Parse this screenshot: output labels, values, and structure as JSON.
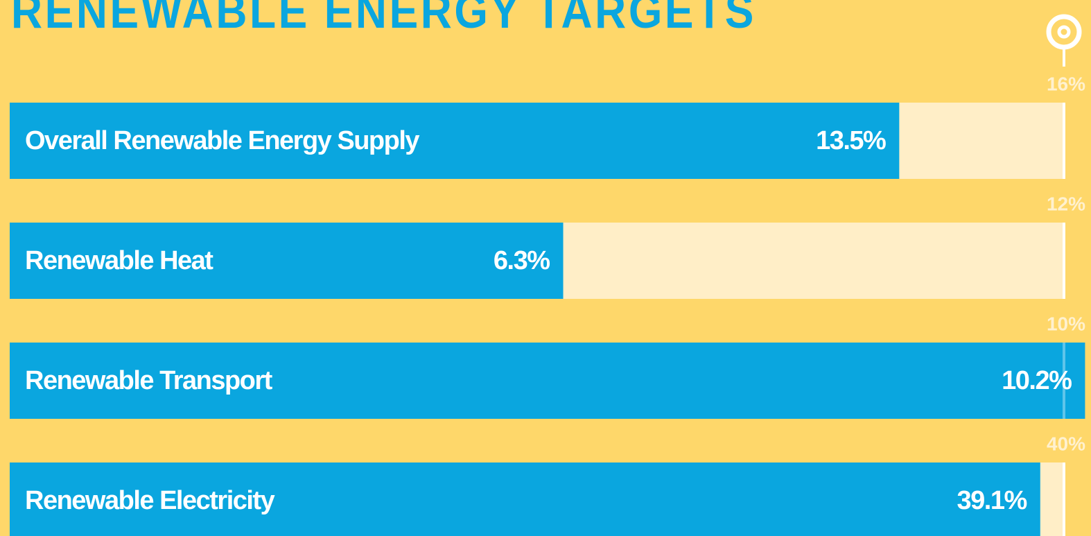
{
  "chart_data": {
    "type": "bar",
    "orientation": "horizontal",
    "title": "RENEWABLE ENERGY TARGETS",
    "categories": [
      "Overall Renewable Energy Supply",
      "Renewable Heat",
      "Renewable Transport",
      "Renewable Electricity"
    ],
    "values": [
      13.5,
      6.3,
      10.2,
      39.1
    ],
    "value_labels": [
      "13.5%",
      "6.3%",
      "10.2%",
      "39.1%"
    ],
    "targets": [
      16,
      12,
      10,
      40
    ],
    "target_labels": [
      "16%",
      "12%",
      "10%",
      "40%"
    ],
    "color": "#0aa6df",
    "track_color": "#ffeec7",
    "target_color": "#ffffff"
  }
}
